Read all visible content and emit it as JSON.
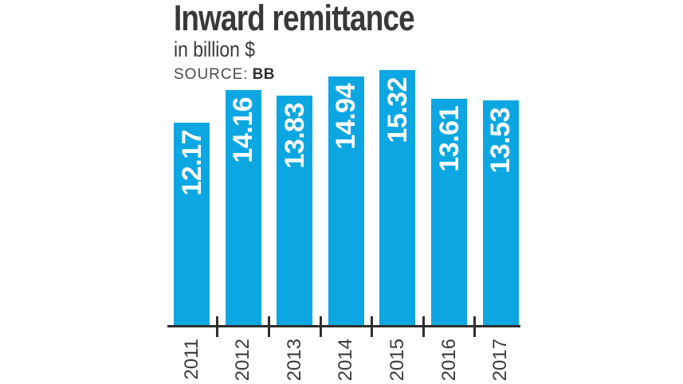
{
  "header": {
    "title": "Inward remittance",
    "subtitle": "in billion $",
    "source_label": "SOURCE:",
    "source_value": "BB"
  },
  "chart_data": {
    "type": "bar",
    "title": "Inward remittance",
    "subtitle": "in billion $",
    "source": "BB",
    "xlabel": "",
    "ylabel": "in billion $",
    "categories": [
      "2011",
      "2012",
      "2013",
      "2014",
      "2015",
      "2016",
      "2017"
    ],
    "values": [
      12.17,
      14.16,
      13.83,
      14.94,
      15.32,
      13.61,
      13.53
    ],
    "value_labels": [
      "12.17",
      "14.16",
      "13.83",
      "14.94",
      "15.32",
      "13.61",
      "13.53"
    ],
    "ylim": [
      0,
      15.32
    ],
    "grid": false,
    "legend": "none",
    "value_labels_inside_bars": true,
    "label_rotation_deg": -90,
    "bar_color": "#0ca7e2",
    "value_label_color": "#ffffff",
    "axis_color": "#2e2e2e",
    "tick_label_color": "#3a3a3a"
  }
}
